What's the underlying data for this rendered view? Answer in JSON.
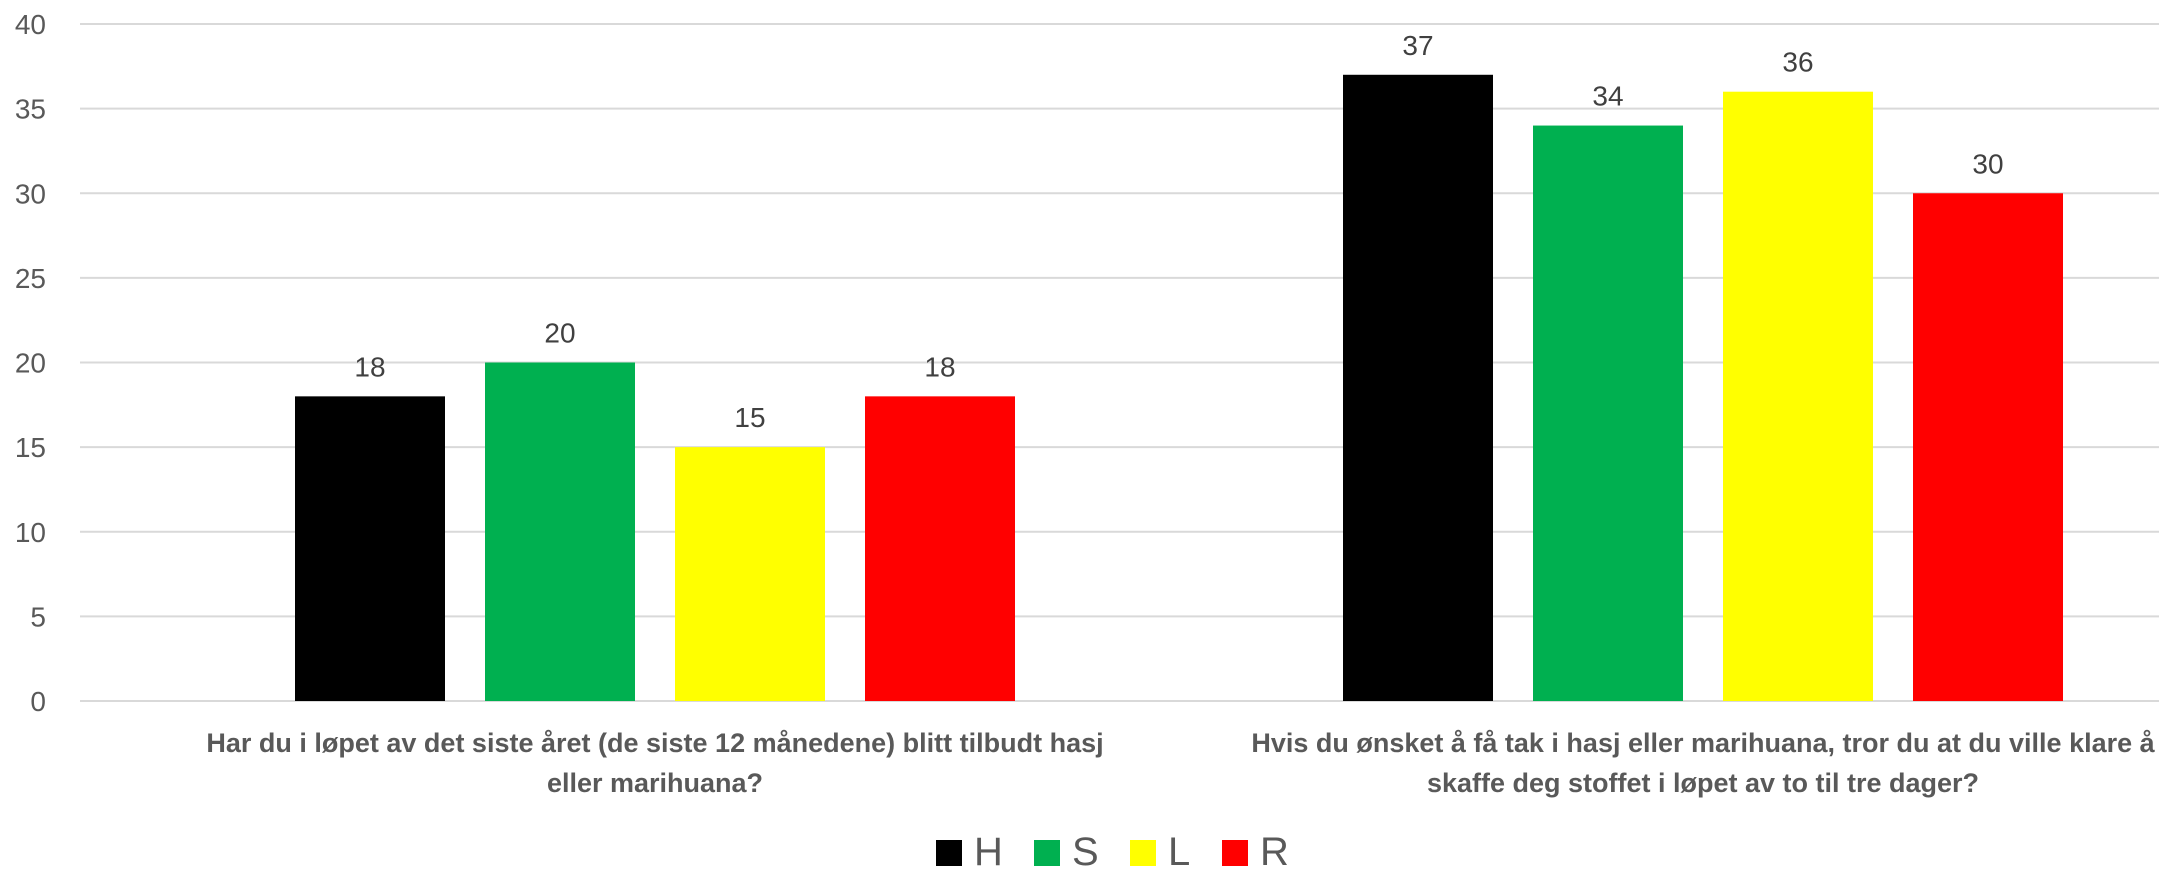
{
  "chart_data": {
    "type": "bar",
    "categories": [
      [
        "Har du i løpet av det siste året (de siste 12 månedene) blitt tilbudt hasj",
        "eller marihuana?"
      ],
      [
        "Hvis du ønsket å få tak i hasj eller marihuana, tror du at du ville klare å",
        "skaffe deg stoffet i løpet av to til tre dager?"
      ]
    ],
    "series": [
      {
        "name": "H",
        "color": "#000000",
        "values": [
          18,
          37
        ]
      },
      {
        "name": "S",
        "color": "#00B050",
        "values": [
          20,
          34
        ]
      },
      {
        "name": "L",
        "color": "#FFFF00",
        "values": [
          15,
          36
        ]
      },
      {
        "name": "R",
        "color": "#FF0000",
        "values": [
          18,
          30
        ]
      }
    ],
    "ylim": [
      0,
      40
    ],
    "yticks": [
      0,
      5,
      10,
      15,
      20,
      25,
      30,
      35,
      40
    ],
    "grid": true,
    "legend_position": "bottom"
  }
}
